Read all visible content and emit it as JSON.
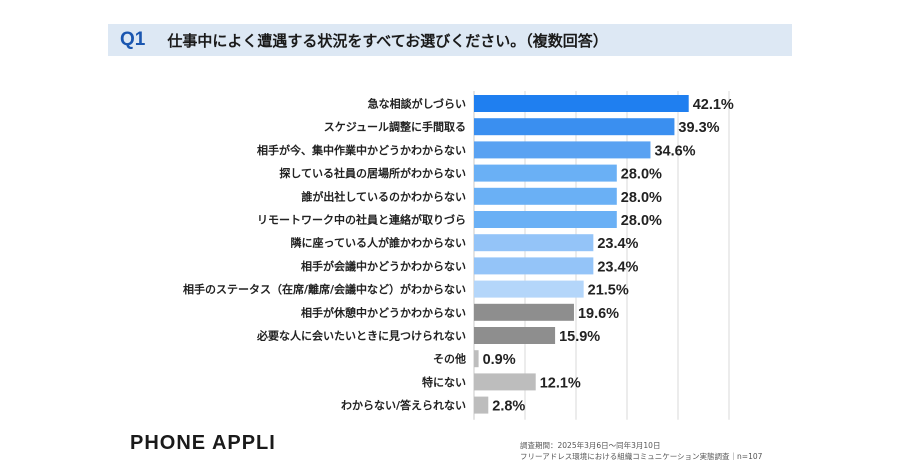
{
  "header": {
    "q_label": "Q1",
    "question": "仕事中によく遭遇する状況をすべてお選びください。（複数回答）"
  },
  "chart_data": {
    "type": "bar",
    "orientation": "horizontal",
    "xlim": [
      0,
      50
    ],
    "grid": true,
    "categories": [
      "急な相談がしづらい",
      "スケジュール調整に手間取る",
      "相手が今、集中作業中かどうかわからない",
      "探している社員の居場所がわからない",
      "誰が出社しているのかわからない",
      "リモートワーク中の社員と連絡が取りづら",
      "隣に座っている人が誰かわからない",
      "相手が会議中かどうかわからない",
      "相手のステータス（在席/離席/会議中など）がわからない",
      "相手が休憩中かどうかわからない",
      "必要な人に会いたいときに見つけられない",
      "その他",
      "特にない",
      "わからない/答えられない"
    ],
    "values": [
      42.1,
      39.3,
      34.6,
      28.0,
      28.0,
      28.0,
      23.4,
      23.4,
      21.5,
      19.6,
      15.9,
      0.9,
      12.1,
      2.8
    ],
    "value_labels": [
      "42.1%",
      "39.3%",
      "34.6%",
      "28.0%",
      "28.0%",
      "28.0%",
      "23.4%",
      "23.4%",
      "21.5%",
      "19.6%",
      "15.9%",
      "0.9%",
      "12.1%",
      "2.8%"
    ],
    "bar_colors": [
      "#1f7ff0",
      "#3a8ff0",
      "#5aa2f2",
      "#6ab0f5",
      "#6ab0f5",
      "#6ab0f5",
      "#94c4f8",
      "#94c4f8",
      "#b4d6fa",
      "#8e8e8e",
      "#8e8e8e",
      "#bdbdbd",
      "#bdbdbd",
      "#bdbdbd"
    ]
  },
  "footer": {
    "logo": "PHONE APPLI",
    "note_line1": "調査期間：2025年3月6日〜同年3月10日",
    "note_line2": "フリーアドレス環境における組織コミュニケーション実態調査｜n=107"
  }
}
